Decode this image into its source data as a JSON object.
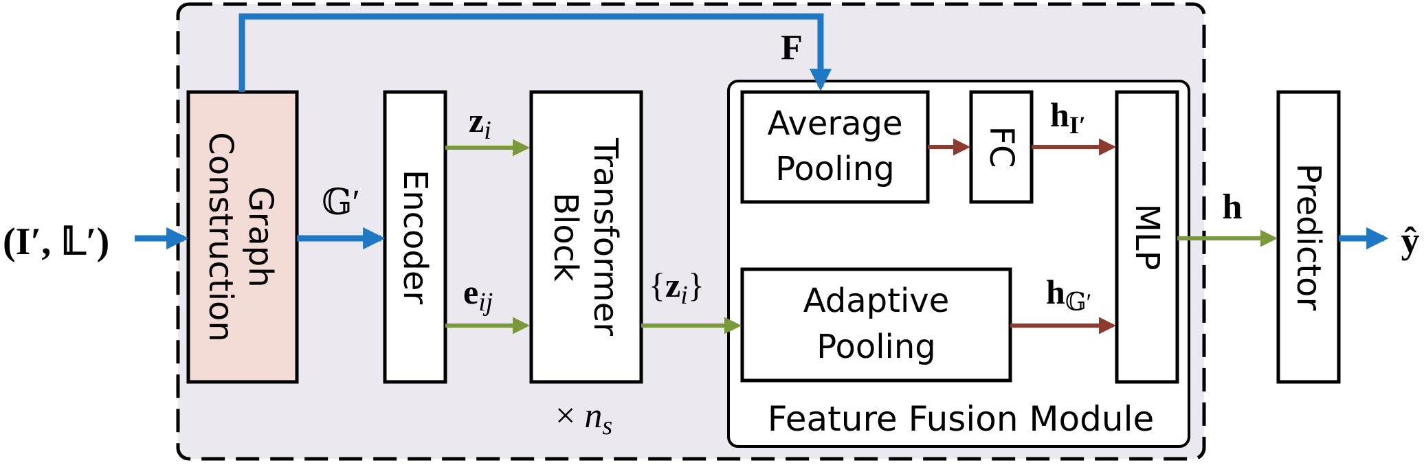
{
  "diagram": {
    "input_label": "(I′, 𝕃′)",
    "graph_construction": {
      "line1": "Graph",
      "line2": "Construction"
    },
    "graph_edge_label": "𝔾′",
    "feature_edge_label": "F",
    "encoder": "Encoder",
    "node_feature_label": {
      "symbol": "z",
      "subscript": "i"
    },
    "edge_feature_label": {
      "symbol": "e",
      "subscript": "ij"
    },
    "transformer_block": {
      "line1": "Transformer",
      "line2": "Block"
    },
    "repeat_label": {
      "prefix": "× ",
      "symbol": "n",
      "subscript": "s"
    },
    "transformer_output_label": {
      "open": "{",
      "symbol": "z",
      "subscript": "i",
      "close": "}"
    },
    "feature_fusion_module": "Feature Fusion Module",
    "average_pooling": {
      "line1": "Average",
      "line2": "Pooling"
    },
    "fc": "FC",
    "image_embedding_label": {
      "symbol": "h",
      "subscript": "I′"
    },
    "adaptive_pooling": {
      "line1": "Adaptive",
      "line2": "Pooling"
    },
    "graph_embedding_label": {
      "symbol": "h",
      "subscript": "𝔾′"
    },
    "mlp": "MLP",
    "fused_label": "h",
    "predictor": "Predictor",
    "output_label": "ŷ",
    "colors": {
      "region_fill": "#ebe9ef",
      "graph_construction_fill": "#f3dcd5",
      "blue_arrow": "#1f78c4",
      "green_arrow": "#7a9a3a",
      "red_arrow": "#8e3b2e"
    }
  }
}
